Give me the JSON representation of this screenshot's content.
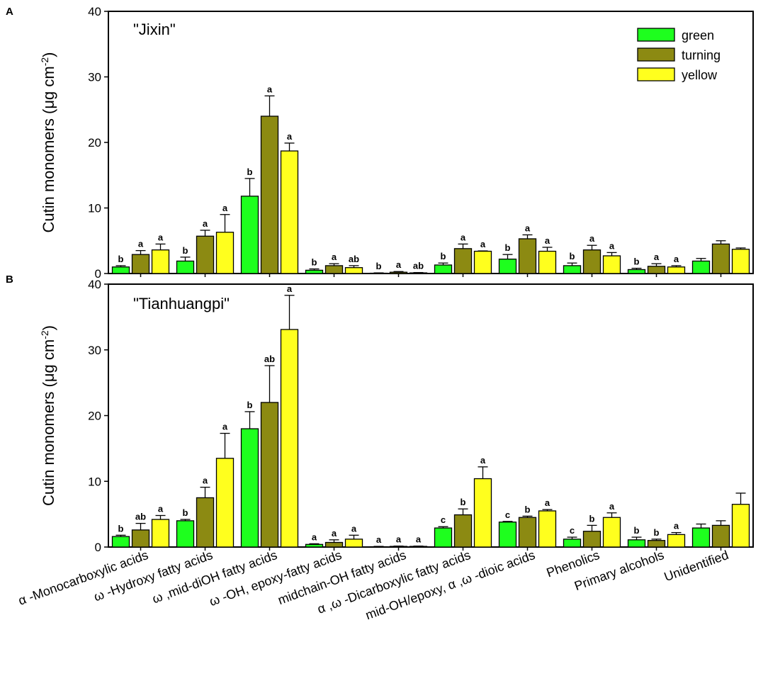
{
  "colors": {
    "green": "#1eff1e",
    "turning": "#8c8a12",
    "yellow": "#ffff1e",
    "axis": "#000000"
  },
  "legend": {
    "items": [
      {
        "name": "green",
        "color": "#1eff1e"
      },
      {
        "name": "turning",
        "color": "#8c8a12"
      },
      {
        "name": "yellow",
        "color": "#ffff1e"
      }
    ]
  },
  "categories": [
    "α -Monocarboxylic acids",
    "ω -Hydroxy fatty acids",
    "ω ,mid-diOH fatty acids",
    "ω -OH, epoxy-fatty acids",
    "midchain-OH fatty acids",
    "α ,ω -Dicarboxylic fatty acids",
    "mid-OH/epoxy, α ,ω -dioic acids",
    "Phenolics",
    "Primary alcohols",
    "Unidentified"
  ],
  "chart_data": [
    {
      "type": "bar",
      "panel": "A",
      "title": "\"Jixin\"",
      "ylabel": "Cutin monomers (μg cm⁻²)",
      "ylim": [
        0,
        40
      ],
      "yticks": [
        "0",
        "10",
        "20",
        "30",
        "40"
      ],
      "series": [
        {
          "name": "green",
          "values": [
            1.0,
            1.9,
            11.8,
            0.5,
            0.05,
            1.3,
            2.2,
            1.2,
            0.6,
            1.9
          ],
          "errors": [
            0.2,
            0.6,
            2.7,
            0.2,
            0.05,
            0.3,
            0.7,
            0.4,
            0.2,
            0.4
          ]
        },
        {
          "name": "turning",
          "values": [
            2.9,
            5.7,
            24.0,
            1.2,
            0.2,
            3.8,
            5.3,
            3.6,
            1.1,
            4.5
          ],
          "errors": [
            0.6,
            0.9,
            3.1,
            0.3,
            0.1,
            0.7,
            0.6,
            0.7,
            0.4,
            0.5
          ]
        },
        {
          "name": "yellow",
          "values": [
            3.6,
            6.3,
            18.7,
            0.9,
            0.1,
            3.4,
            3.4,
            2.7,
            1.0,
            3.7
          ],
          "errors": [
            0.9,
            2.7,
            1.2,
            0.3,
            0.05,
            0.05,
            0.6,
            0.5,
            0.2,
            0.2
          ]
        }
      ],
      "significance": [
        [
          "b",
          "a",
          "a"
        ],
        [
          "b",
          "a",
          "a"
        ],
        [
          "b",
          "a",
          "a"
        ],
        [
          "b",
          "a",
          "ab"
        ],
        [
          "b",
          "a",
          "ab"
        ],
        [
          "b",
          "a",
          "a"
        ],
        [
          "b",
          "a",
          "a"
        ],
        [
          "b",
          "a",
          "a"
        ],
        [
          "b",
          "a",
          "a"
        ],
        [
          "",
          "",
          ""
        ]
      ]
    },
    {
      "type": "bar",
      "panel": "B",
      "title": "\"Tianhuangpi\"",
      "ylabel": "Cutin monomers (μg cm⁻²)",
      "ylim": [
        0,
        40
      ],
      "yticks": [
        "0",
        "10",
        "20",
        "30",
        "40"
      ],
      "series": [
        {
          "name": "green",
          "values": [
            1.6,
            4.0,
            18.0,
            0.4,
            0.05,
            2.9,
            3.8,
            1.2,
            1.1,
            2.9
          ],
          "errors": [
            0.2,
            0.2,
            2.6,
            0.1,
            0.05,
            0.2,
            0.1,
            0.3,
            0.4,
            0.6
          ]
        },
        {
          "name": "turning",
          "values": [
            2.6,
            7.5,
            22.0,
            0.7,
            0.1,
            4.9,
            4.5,
            2.4,
            1.0,
            3.3
          ],
          "errors": [
            1.0,
            1.6,
            5.6,
            0.4,
            0.05,
            0.9,
            0.2,
            0.9,
            0.2,
            0.7
          ]
        },
        {
          "name": "yellow",
          "values": [
            4.2,
            13.5,
            33.1,
            1.2,
            0.1,
            10.4,
            5.5,
            4.5,
            1.9,
            6.5
          ],
          "errors": [
            0.6,
            3.8,
            5.2,
            0.6,
            0.05,
            1.8,
            0.2,
            0.7,
            0.3,
            1.7
          ]
        }
      ],
      "significance": [
        [
          "b",
          "ab",
          "a"
        ],
        [
          "b",
          "a",
          "a"
        ],
        [
          "b",
          "ab",
          "a"
        ],
        [
          "a",
          "a",
          "a"
        ],
        [
          "a",
          "a",
          "a"
        ],
        [
          "c",
          "b",
          "a"
        ],
        [
          "c",
          "b",
          "a"
        ],
        [
          "c",
          "b",
          "a"
        ],
        [
          "b",
          "b",
          "a"
        ],
        [
          "",
          "",
          ""
        ]
      ]
    }
  ]
}
